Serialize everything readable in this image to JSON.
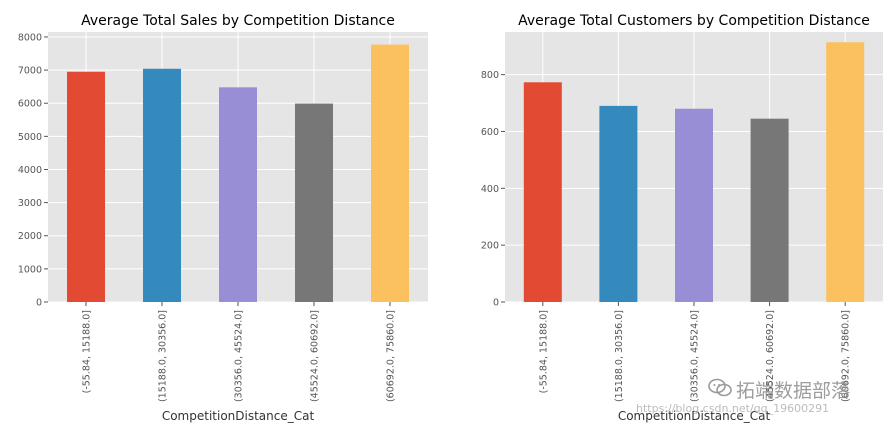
{
  "charts": [
    {
      "chart_data": {
        "type": "bar",
        "title": "Average Total Sales by Competition Distance",
        "xlabel": "CompetitionDistance_Cat",
        "ylabel": "",
        "categories": [
          "(-55.84, 15188.0]",
          "(15188.0, 30356.0]",
          "(30356.0, 45524.0]",
          "(45524.0, 60692.0]",
          "(60692.0, 75860.0]"
        ],
        "values": [
          6950,
          7040,
          6480,
          5990,
          7770
        ],
        "ylim": [
          0,
          8150
        ],
        "yticks": [
          0,
          1000,
          2000,
          3000,
          4000,
          5000,
          6000,
          7000,
          8000
        ],
        "grid": true,
        "legend": "none"
      },
      "colors": [
        "#E24A33",
        "#348ABD",
        "#988ED5",
        "#777777",
        "#FBC15E"
      ]
    },
    {
      "chart_data": {
        "type": "bar",
        "title": "Average Total Customers by Competition Distance",
        "xlabel": "CompetitionDistance_Cat",
        "ylabel": "",
        "categories": [
          "(-55.84, 15188.0]",
          "(15188.0, 30356.0]",
          "(30356.0, 45524.0]",
          "(45524.0, 60692.0]",
          "(60692.0, 75860.0]"
        ],
        "values": [
          773,
          690,
          680,
          645,
          914
        ],
        "ylim": [
          0,
          950
        ],
        "yticks": [
          0,
          200,
          400,
          600,
          800
        ],
        "grid": true,
        "legend": "none"
      },
      "colors": [
        "#E24A33",
        "#348ABD",
        "#988ED5",
        "#777777",
        "#FBC15E"
      ]
    }
  ],
  "watermark": {
    "main": "拓端数据部落",
    "sub": "https://blog.csdn.net/qq_19600291"
  }
}
